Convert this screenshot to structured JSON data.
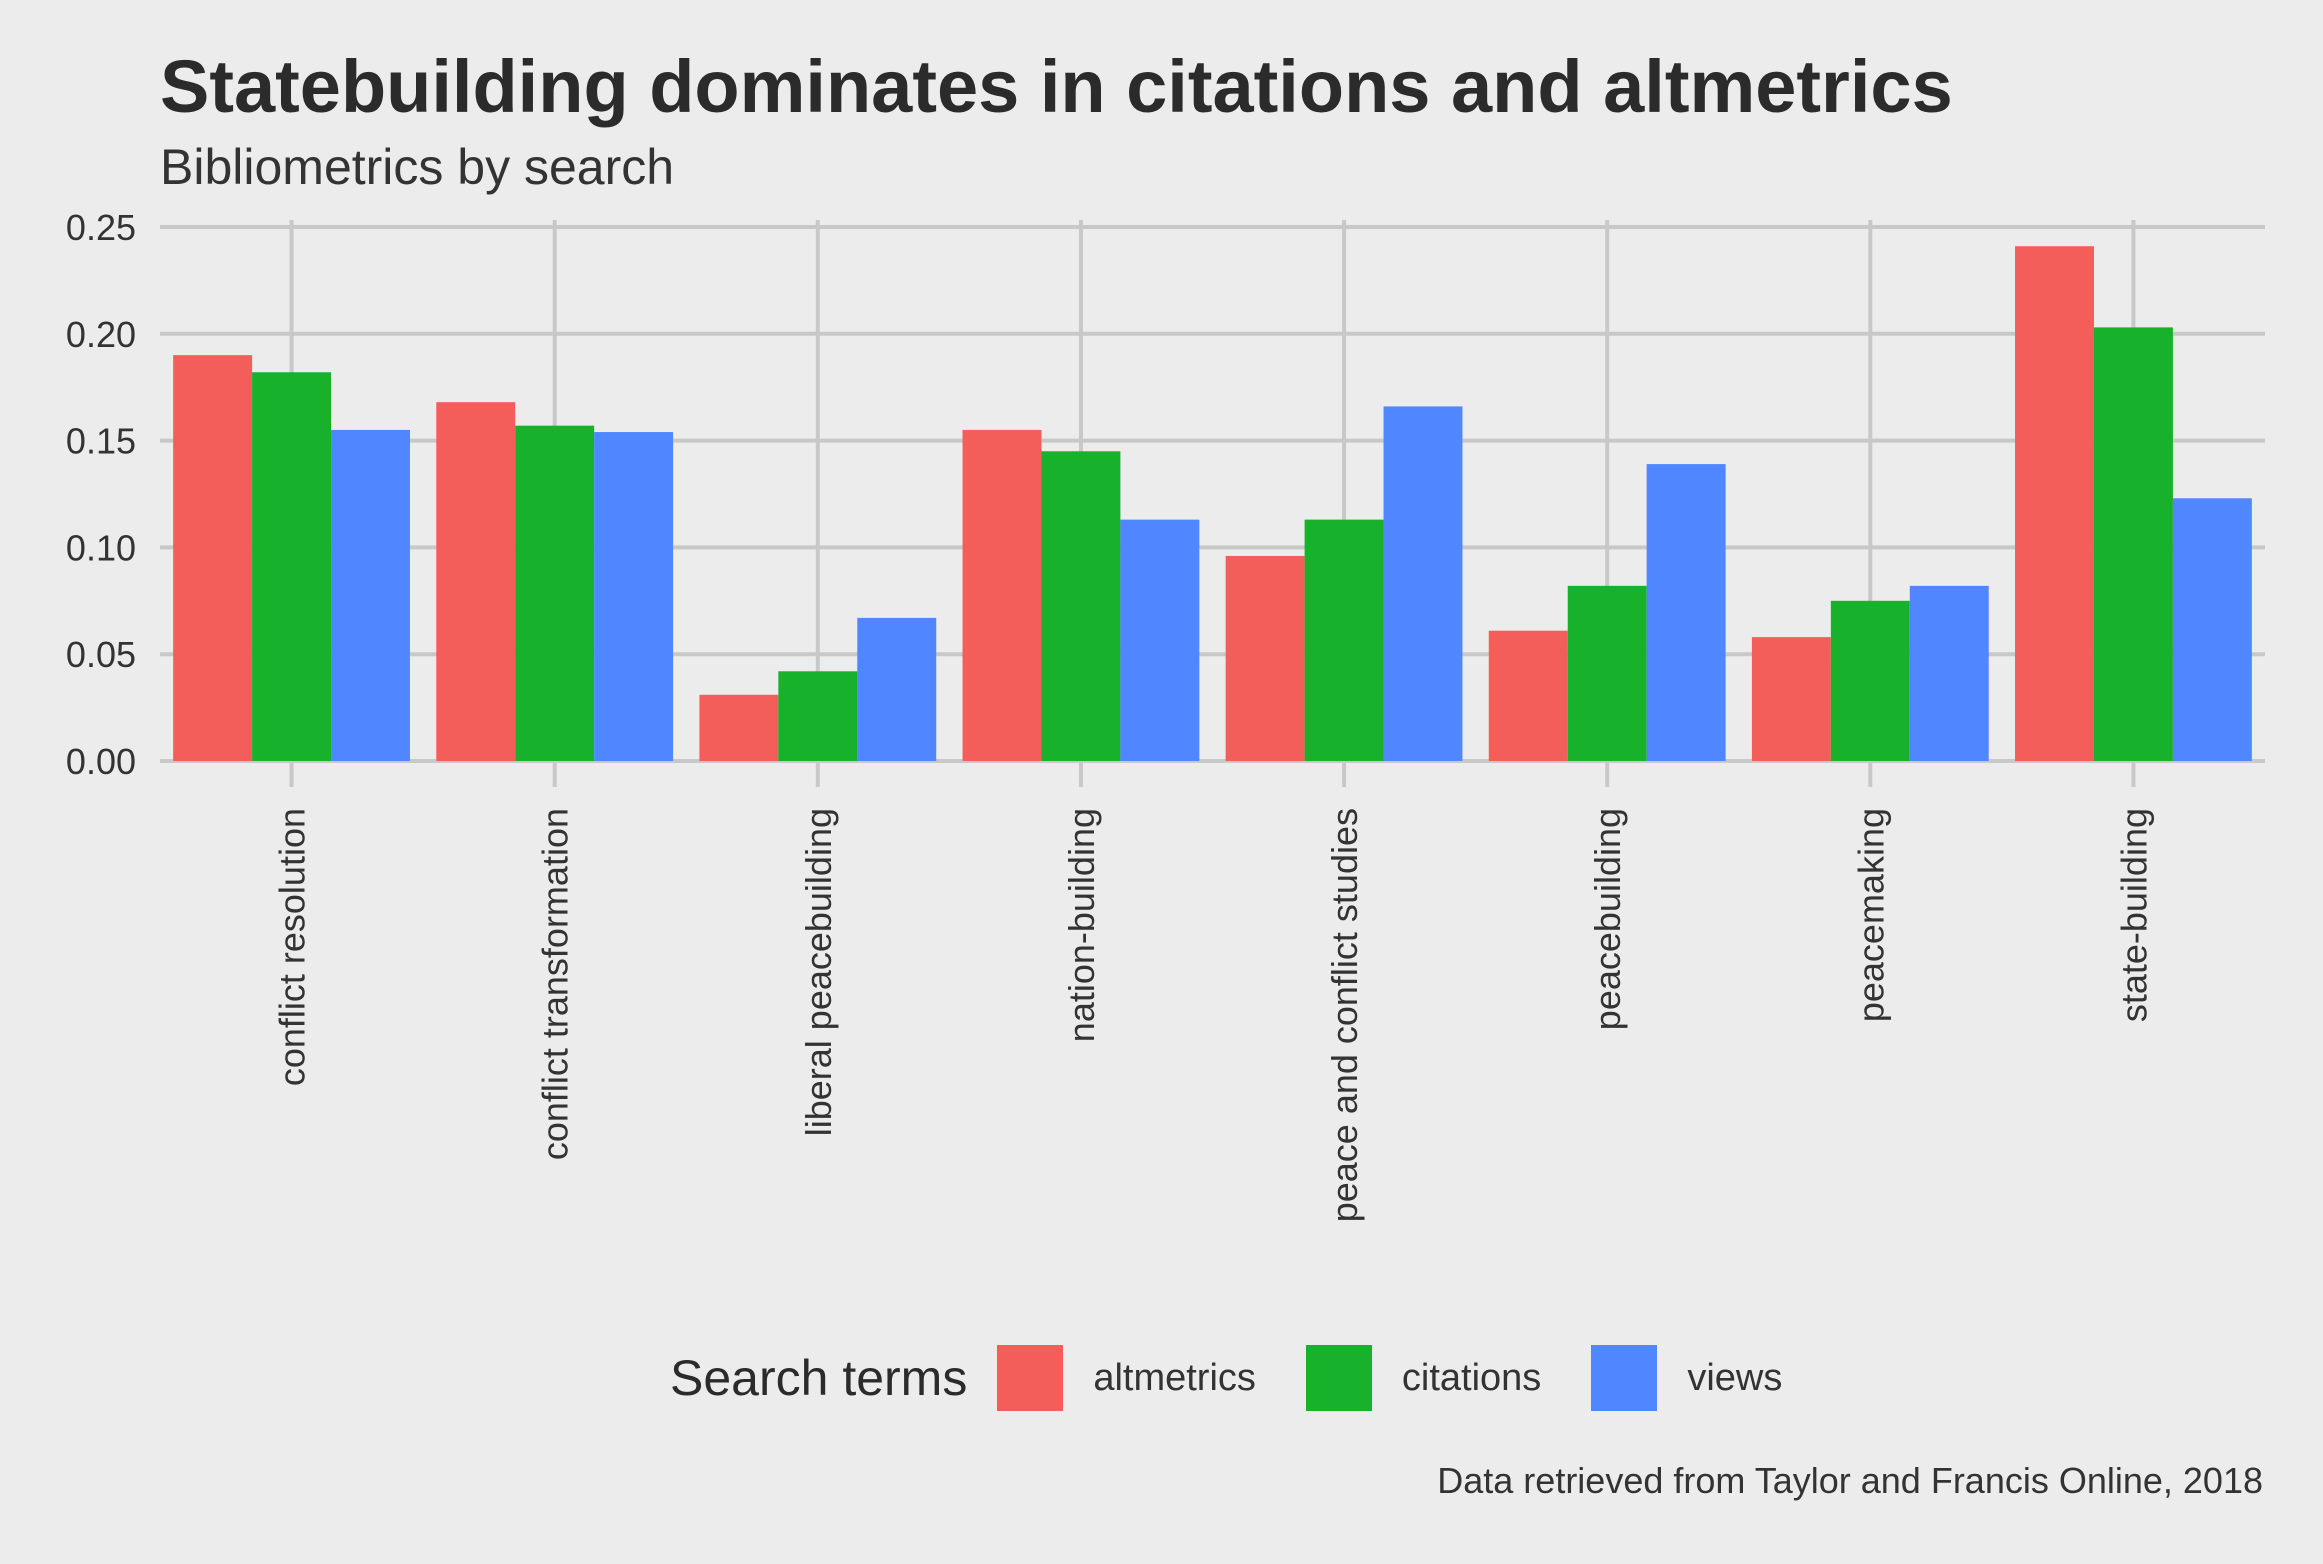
{
  "chart_data": {
    "type": "bar",
    "title": "Statebuilding dominates in citations and altmetrics",
    "subtitle": "Bibliometrics by search",
    "caption": "Data retrieved from Taylor and Francis Online, 2018",
    "xlabel": "",
    "ylabel": "",
    "ylim": [
      0,
      0.25
    ],
    "yticks": [
      "0.00",
      "0.05",
      "0.10",
      "0.15",
      "0.20",
      "0.25"
    ],
    "grid": true,
    "legend_position": "bottom",
    "legend_title": "Search terms",
    "categories": [
      "conflict resolution",
      "conflict transformation",
      "liberal peacebuilding",
      "nation-building",
      "peace and conflict studies",
      "peacebuilding",
      "peacemaking",
      "state-building"
    ],
    "series": [
      {
        "name": "altmetrics",
        "color": "#f35e5a",
        "values": [
          0.19,
          0.168,
          0.031,
          0.155,
          0.096,
          0.061,
          0.058,
          0.241
        ]
      },
      {
        "name": "citations",
        "color": "#17b12b",
        "values": [
          0.182,
          0.157,
          0.042,
          0.145,
          0.113,
          0.082,
          0.075,
          0.203
        ]
      },
      {
        "name": "views",
        "color": "#5086ff",
        "values": [
          0.155,
          0.154,
          0.067,
          0.113,
          0.166,
          0.139,
          0.082,
          0.123
        ]
      }
    ]
  }
}
